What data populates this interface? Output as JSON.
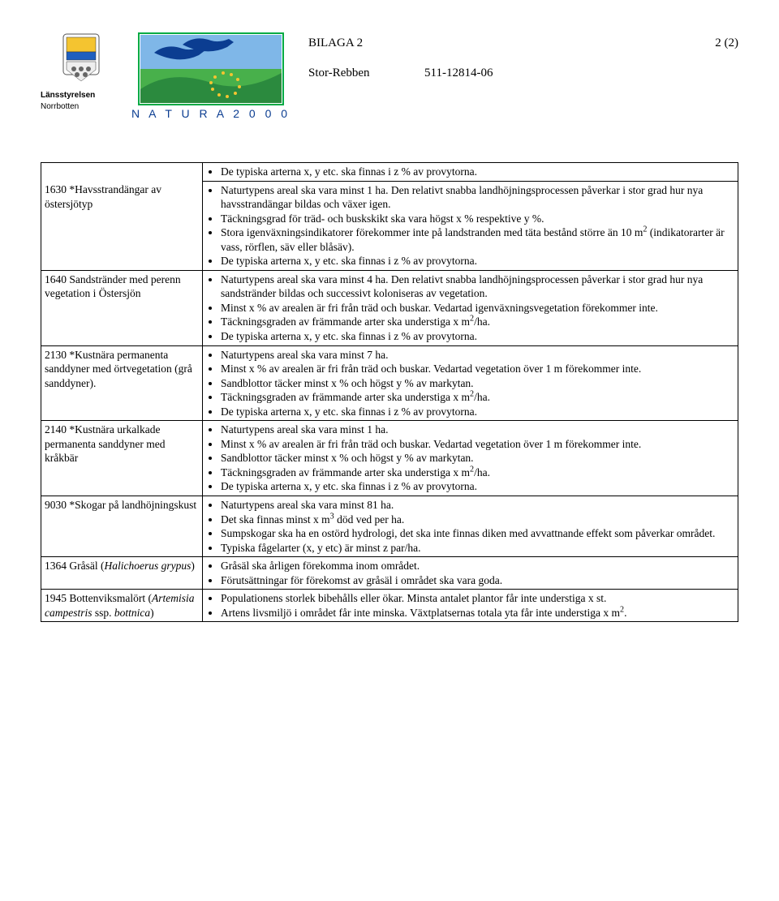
{
  "header": {
    "bilaga": "BILAGA 2",
    "pagenum": "2 (2)",
    "site": "Stor-Rebben",
    "code": "511-12814-06"
  },
  "lans": {
    "line1": "Länsstyrelsen",
    "line2": "Norrbotten"
  },
  "natura": {
    "label": "N A T U R A  2 0 0 0"
  },
  "rows": [
    {
      "left": "1630 *Havsstrandängar av östersjötyp",
      "bullets": [
        "De typiska arterna x, y etc. ska finnas i z % av provytorna.",
        "Naturtypens areal ska vara minst 1 ha. Den relativt snabba landhöjningsprocessen påverkar i stor grad hur nya havsstrandängar bildas och växer igen.",
        "Täckningsgrad för träd- och buskskikt ska vara högst x % respektive y %.",
        "Stora igenväxningsindikatorer förekommer inte på landstranden med täta bestånd större än 10 m² (indikatorarter är vass, rörflen, säv eller blåsäv).",
        "De typiska arterna x, y etc. ska finnas i z % av provytorna."
      ],
      "topBorder": false
    },
    {
      "left": "1640 Sandstränder med perenn vegetation i Östersjön",
      "bullets": [
        "Naturtypens areal ska vara minst 4 ha. Den relativt snabba landhöjningsprocessen påverkar i stor grad hur nya sandstränder bildas och successivt koloniseras av vegetation.",
        "Minst x % av arealen är fri från träd och buskar. Vedartad igenväxningsvegetation förekommer inte.",
        "Täckningsgraden av främmande arter ska understiga x m²/ha.",
        "De typiska arterna x, y etc. ska finnas i z % av provytorna."
      ],
      "topBorder": true
    },
    {
      "left": "2130 *Kustnära permanenta sanddyner med örtvegetation (grå sanddyner).",
      "bullets": [
        "Naturtypens areal ska vara minst 7 ha.",
        "Minst x % av arealen är fri från träd och buskar. Vedartad vegetation över 1 m förekommer inte.",
        "Sandblottor täcker minst x % och högst y % av markytan.",
        "Täckningsgraden av främmande arter ska understiga x m²/ha.",
        "De typiska arterna x, y etc. ska finnas i z % av provytorna."
      ],
      "topBorder": true
    },
    {
      "left": "2140 *Kustnära urkalkade permanenta sanddyner med kråkbär",
      "bullets": [
        "Naturtypens areal ska vara minst 1 ha.",
        "Minst x % av arealen är fri från träd och buskar. Vedartad vegetation över 1 m förekommer inte.",
        "Sandblottor täcker minst x % och högst y % av markytan.",
        "Täckningsgraden av främmande arter ska understiga x m²/ha.",
        "De typiska arterna x, y etc. ska finnas i z % av provytorna."
      ],
      "topBorder": true
    },
    {
      "left": "9030 *Skogar på landhöjningskust",
      "bullets": [
        "Naturtypens areal ska vara minst 81 ha.",
        "Det ska finnas minst x m³ död ved per ha.",
        "Sumpskogar ska ha en ostörd hydrologi, det ska inte finnas diken med avvattnande effekt som påverkar området.",
        "Typiska fågelarter (x, y etc) är minst z par/ha."
      ],
      "topBorder": true
    },
    {
      "left": "1364 Gråsäl (<i>Halichoerus grypus</i>)",
      "bullets": [
        "Gråsäl ska årligen förekomma inom området.",
        "Förutsättningar för förekomst av gråsäl i området ska vara goda."
      ],
      "topBorder": true
    },
    {
      "left": "1945 Bottenviksmalört (<i>Artemisia campestris</i> ssp. <i>bottnica</i>)",
      "bullets": [
        "Populationens storlek bibehålls eller ökar. Minsta antalet plantor får inte understiga x st.",
        "Artens livsmiljö i området får inte minska. Växtplatsernas totala yta får inte understiga x m²."
      ],
      "topBorder": true
    }
  ]
}
